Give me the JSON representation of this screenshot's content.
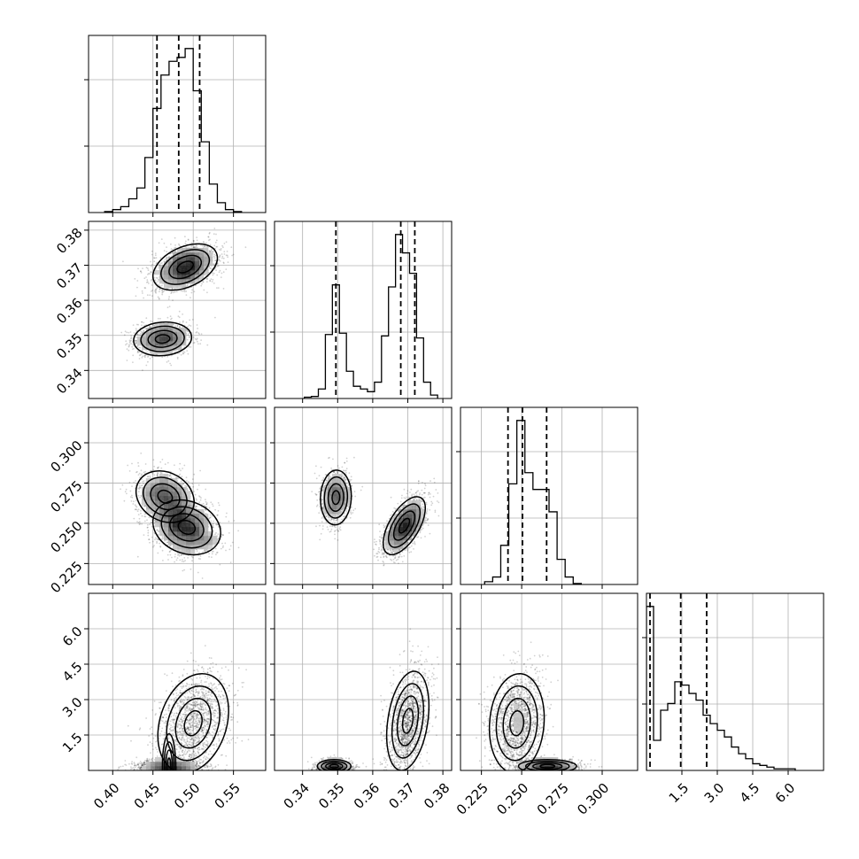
{
  "chart_data": {
    "type": "corner",
    "style": {
      "line_color": "#000000",
      "grid_color": "#b0b0b0",
      "point_color": "#000000",
      "background": "#ffffff",
      "grid": true,
      "quantile_line_style": "dashed"
    },
    "params": [
      {
        "range": [
          0.37,
          0.59
        ],
        "ticks": [
          0.4,
          0.45,
          0.5,
          0.55
        ],
        "tick_labels": [
          "0.40",
          "0.45",
          "0.50",
          "0.55"
        ],
        "quantiles": [
          0.455,
          0.482,
          0.508
        ],
        "hist": {
          "edges": [
            0.39,
            0.4,
            0.41,
            0.42,
            0.43,
            0.44,
            0.45,
            0.46,
            0.47,
            0.48,
            0.49,
            0.5,
            0.51,
            0.52,
            0.53,
            0.54,
            0.55,
            0.56
          ],
          "counts": [
            1,
            3,
            6,
            14,
            25,
            56,
            106,
            140,
            154,
            158,
            167,
            124,
            72,
            29,
            10,
            3,
            1
          ]
        }
      },
      {
        "range": [
          0.332,
          0.3825
        ],
        "ticks": [
          0.34,
          0.35,
          0.36,
          0.37,
          0.38
        ],
        "tick_labels": [
          "0.34",
          "0.35",
          "0.36",
          "0.37",
          "0.38"
        ],
        "quantiles": [
          0.3495,
          0.368,
          0.372
        ],
        "hist": {
          "edges": [
            0.3405,
            0.3425,
            0.3445,
            0.3465,
            0.3485,
            0.3505,
            0.3525,
            0.3545,
            0.3565,
            0.3585,
            0.3605,
            0.3625,
            0.3645,
            0.3665,
            0.3685,
            0.3705,
            0.3725,
            0.3745,
            0.3765,
            0.3785
          ],
          "counts": [
            2,
            3,
            14,
            94,
            167,
            96,
            40,
            18,
            14,
            10,
            24,
            92,
            164,
            241,
            214,
            184,
            89,
            24,
            5
          ]
        }
      },
      {
        "range": [
          0.212,
          0.322
        ],
        "ticks": [
          0.225,
          0.25,
          0.275,
          0.3
        ],
        "tick_labels": [
          "0.225",
          "0.250",
          "0.275",
          "0.300"
        ],
        "quantiles": [
          0.2415,
          0.2505,
          0.2655
        ],
        "hist": {
          "edges": [
            0.227,
            0.232,
            0.237,
            0.242,
            0.247,
            0.252,
            0.257,
            0.262,
            0.267,
            0.272,
            0.277,
            0.282,
            0.287
          ],
          "counts": [
            3,
            8,
            42,
            108,
            176,
            120,
            102,
            102,
            78,
            27,
            8,
            1
          ]
        }
      },
      {
        "range": [
          0.0,
          7.5
        ],
        "ticks": [
          1.5,
          3.0,
          4.5,
          6.0
        ],
        "tick_labels": [
          "1.5",
          "3.0",
          "4.5",
          "6.0"
        ],
        "quantiles": [
          0.15,
          1.45,
          2.55
        ],
        "hist": {
          "edges": [
            0.0,
            0.3,
            0.6,
            0.9,
            1.2,
            1.5,
            1.8,
            2.1,
            2.4,
            2.7,
            3.0,
            3.3,
            3.6,
            3.9,
            4.2,
            4.5,
            4.8,
            5.1,
            5.4,
            5.7,
            6.0,
            6.3
          ],
          "counts": [
            98,
            18,
            36,
            40,
            53,
            51,
            46,
            42,
            33,
            28,
            24,
            20,
            14,
            10,
            7,
            4,
            3,
            2,
            1,
            1,
            1
          ]
        }
      }
    ],
    "pairs": [
      {
        "row": 1,
        "col": 0,
        "modes": [
          {
            "mean": [
              0.49,
              0.3695
            ],
            "sd": [
              0.02,
              0.0033
            ],
            "rho": 0.4,
            "weight": 0.62
          },
          {
            "mean": [
              0.462,
              0.349
            ],
            "sd": [
              0.018,
              0.0024
            ],
            "rho": 0.1,
            "weight": 0.38
          }
        ]
      },
      {
        "row": 2,
        "col": 0,
        "modes": [
          {
            "mean": [
              0.492,
              0.2475
            ],
            "sd": [
              0.021,
              0.0085
            ],
            "rho": -0.2,
            "weight": 0.58
          },
          {
            "mean": [
              0.465,
              0.2665
            ],
            "sd": [
              0.018,
              0.008
            ],
            "rho": -0.2,
            "weight": 0.42
          }
        ]
      },
      {
        "row": 2,
        "col": 1,
        "modes": [
          {
            "mean": [
              0.369,
              0.2485
            ],
            "sd": [
              0.003,
              0.009
            ],
            "rho": 0.6,
            "weight": 0.62
          },
          {
            "mean": [
              0.3495,
              0.266
            ],
            "sd": [
              0.0022,
              0.0085
            ],
            "rho": 0.05,
            "weight": 0.38
          }
        ]
      },
      {
        "row": 3,
        "col": 0,
        "modes": [
          {
            "mean": [
              0.5,
              2.0
            ],
            "sd": [
              0.022,
              1.05
            ],
            "rho": 0.25,
            "weight": 0.58
          },
          {
            "mean": [
              0.47,
              0.18
            ],
            "sd": [
              0.02,
              0.14
            ],
            "rho": 0.0,
            "weight": 0.42
          }
        ]
      },
      {
        "row": 3,
        "col": 1,
        "modes": [
          {
            "mean": [
              0.37,
              2.1
            ],
            "sd": [
              0.003,
              1.05
            ],
            "rho": 0.3,
            "weight": 0.6
          },
          {
            "mean": [
              0.349,
              0.18
            ],
            "sd": [
              0.0024,
              0.14
            ],
            "rho": 0.0,
            "weight": 0.4
          }
        ]
      },
      {
        "row": 3,
        "col": 2,
        "modes": [
          {
            "mean": [
              0.247,
              2.0
            ],
            "sd": [
              0.0085,
              1.05
            ],
            "rho": 0.1,
            "weight": 0.6
          },
          {
            "mean": [
              0.266,
              0.18
            ],
            "sd": [
              0.009,
              0.14
            ],
            "rho": 0.0,
            "weight": 0.4
          }
        ]
      }
    ]
  }
}
